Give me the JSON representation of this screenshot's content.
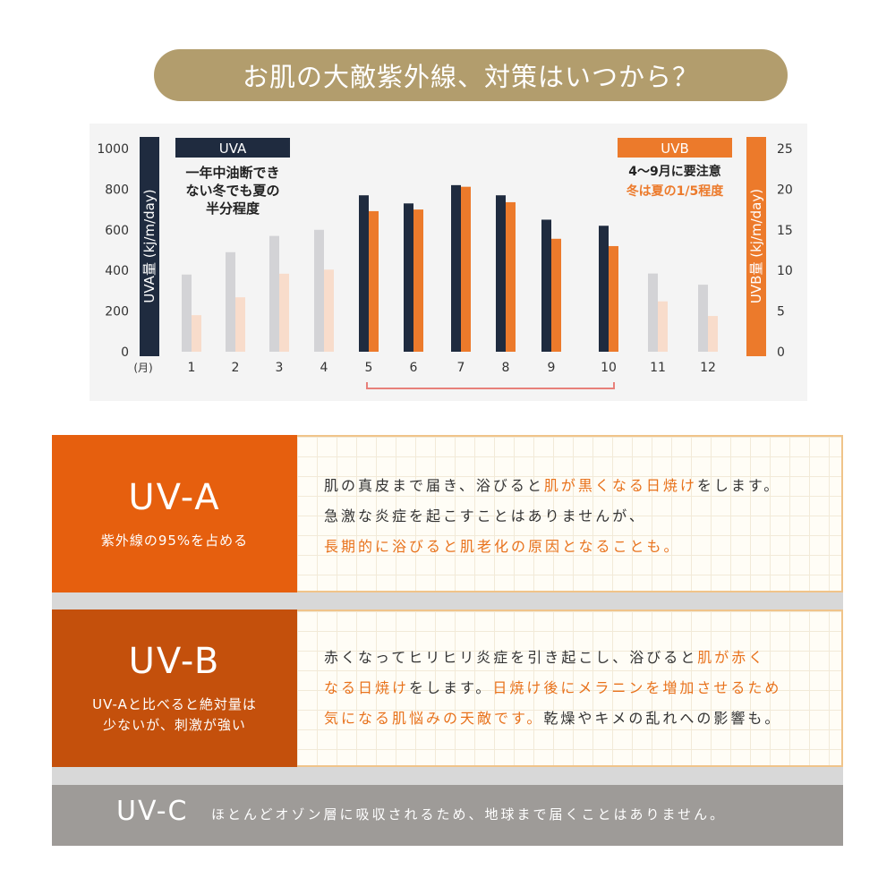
{
  "title": "お肌の大敵紫外線、対策はいつから？",
  "chart_data": {
    "type": "bar",
    "categories": [
      "1",
      "2",
      "3",
      "4",
      "5",
      "6",
      "7",
      "8",
      "9",
      "10",
      "11",
      "12"
    ],
    "x_unit_label": "(月)",
    "series": [
      {
        "name": "UVA",
        "axis": "left",
        "values": [
          380,
          490,
          570,
          600,
          770,
          730,
          820,
          770,
          650,
          620,
          385,
          330
        ]
      },
      {
        "name": "UVB",
        "axis": "right",
        "values": [
          4.5,
          6.7,
          9.6,
          10.1,
          17.3,
          17.5,
          20.3,
          18.4,
          13.9,
          13.0,
          6.2,
          4.4
        ]
      }
    ],
    "ylabel": "UVA量 (kj/m/day)",
    "ylim": [
      0,
      1000
    ],
    "yticks": [
      "0",
      "200",
      "400",
      "600",
      "800",
      "1000"
    ],
    "y2label": "UVB量 (kj/m/day)",
    "y2lim": [
      0,
      25
    ],
    "y2ticks": [
      "0",
      "5",
      "10",
      "15",
      "20",
      "25"
    ],
    "highlight_months": [
      5,
      10
    ],
    "colors": {
      "uva_strong": "#1f2b3f",
      "uva_faded": "#d3d3d6",
      "uvb_strong": "#ec7a2b",
      "uvb_faded": "#f8dccb",
      "bracket": "#e8807a"
    },
    "uva_note": {
      "badge": "UVA",
      "lines": [
        "一年中油断でき",
        "ない冬でも夏の",
        "半分程度"
      ]
    },
    "uvb_note": {
      "badge": "UVB",
      "line1": "4～9月に要注意",
      "line2": "冬は夏の1/5程度"
    }
  },
  "uva": {
    "name": "UV-A",
    "sub": "紫外線の95%を占める",
    "lines": [
      [
        {
          "t": "肌の真皮まで届き、浴びると"
        },
        {
          "t": "肌が黒くなる日焼け",
          "hl": true
        },
        {
          "t": "をします。"
        }
      ],
      [
        {
          "t": "急激な炎症を起こすことはありませんが、"
        }
      ],
      [
        {
          "t": "長期的に浴びると肌老化の原因となることも。",
          "hl": true
        }
      ]
    ]
  },
  "uvb": {
    "name": "UV-B",
    "sub1": "UV-Aと比べると絶対量は",
    "sub2": "少ないが、刺激が強い",
    "lines": [
      [
        {
          "t": "赤くなってヒリヒリ炎症を引き起こし、浴びると"
        },
        {
          "t": "肌が赤く",
          "hl": true
        }
      ],
      [
        {
          "t": "なる日焼け",
          "hl": true
        },
        {
          "t": "をします。"
        },
        {
          "t": "日焼け後にメラニンを増加させるため",
          "hl": true
        }
      ],
      [
        {
          "t": "気になる肌悩みの天敵です。",
          "hl": true
        },
        {
          "t": "乾燥やキメの乱れへの影響も。"
        }
      ]
    ]
  },
  "uvc": {
    "name": "UV-C",
    "text": "ほとんどオゾン層に吸収されるため、地球まで届くことはありません。"
  }
}
